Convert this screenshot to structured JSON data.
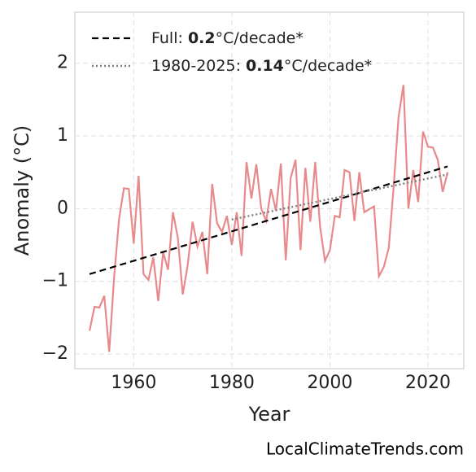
{
  "chart_data": {
    "type": "line",
    "xlabel": "Year",
    "ylabel": "Anomaly (°C)",
    "source": "LocalClimateTrends.com",
    "xlim": [
      1948,
      2027.3
    ],
    "ylim": [
      -2.2,
      2.7
    ],
    "xticks": [
      1960,
      1980,
      2000,
      2020
    ],
    "yticks": [
      {
        "value": -2,
        "label": "−2"
      },
      {
        "value": -1,
        "label": "−1"
      },
      0,
      1,
      2
    ],
    "grid": true,
    "legend": "upper left",
    "series": [
      {
        "color": "#e8898b",
        "style": "solid",
        "x": [
          1951,
          1952,
          1953,
          1954,
          1955,
          1956,
          1957,
          1958,
          1959,
          1960,
          1961,
          1962,
          1963,
          1964,
          1965,
          1966,
          1967,
          1968,
          1969,
          1970,
          1971,
          1972,
          1973,
          1974,
          1975,
          1976,
          1977,
          1978,
          1979,
          1980,
          1981,
          1982,
          1983,
          1984,
          1985,
          1986,
          1987,
          1988,
          1989,
          1990,
          1991,
          1992,
          1993,
          1994,
          1995,
          1996,
          1997,
          1998,
          1999,
          2000,
          2001,
          2002,
          2003,
          2004,
          2005,
          2006,
          2007,
          2008,
          2009,
          2010,
          2011,
          2012,
          2013,
          2014,
          2015,
          2016,
          2017,
          2018,
          2019,
          2020,
          2021,
          2022,
          2023,
          2024
        ],
        "values": [
          -1.68,
          -1.35,
          -1.36,
          -1.2,
          -1.97,
          -0.95,
          -0.15,
          0.28,
          0.27,
          -0.48,
          0.45,
          -0.9,
          -0.98,
          -0.67,
          -1.27,
          -0.6,
          -0.84,
          -0.05,
          -0.4,
          -1.18,
          -0.78,
          -0.18,
          -0.52,
          -0.32,
          -0.9,
          0.34,
          -0.2,
          -0.32,
          -0.1,
          -0.5,
          -0.05,
          -0.65,
          0.64,
          0.14,
          0.61,
          0.0,
          -0.17,
          0.27,
          -0.03,
          0.62,
          -0.71,
          0.42,
          0.67,
          -0.57,
          0.56,
          -0.18,
          0.64,
          -0.25,
          -0.72,
          -0.57,
          -0.1,
          -0.12,
          0.53,
          0.5,
          -0.17,
          0.5,
          -0.05,
          -0.01,
          0.03,
          -0.93,
          -0.8,
          -0.54,
          0.3,
          1.26,
          1.7,
          0.0,
          0.53,
          0.09,
          1.06,
          0.85,
          0.84,
          0.67,
          0.23,
          0.5
        ]
      },
      {
        "color": "#000000",
        "style": "dashed",
        "label_prefix": "Full: ",
        "trend": 0.2,
        "label_suffix": "°C/decade*",
        "x": [
          1951,
          2024
        ],
        "values": [
          -0.9,
          0.58
        ]
      },
      {
        "color": "#808080",
        "style": "dotted",
        "label_prefix": "1980-2025: ",
        "trend": 0.14,
        "label_suffix": "°C/decade*",
        "x": [
          1980,
          2024
        ],
        "values": [
          -0.15,
          0.47
        ]
      }
    ]
  }
}
